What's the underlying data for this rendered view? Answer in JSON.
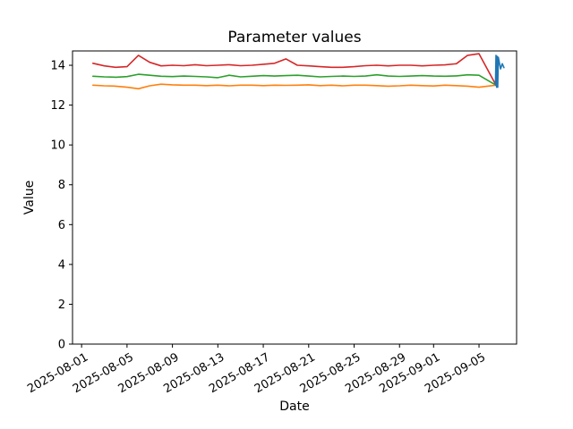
{
  "figure": {
    "background": "#ffffff",
    "plot_background": "#ffffff",
    "spine_color": "#000000"
  },
  "chart_data": {
    "type": "line",
    "title": "Parameter values",
    "xlabel": "Date",
    "ylabel": "Value",
    "grid": false,
    "legend": false,
    "xlim_days_since_2025-08-01": [
      -0.8,
      38.31
    ],
    "ylim": [
      0,
      14.72
    ],
    "x_axis": {
      "origin_date": "2025-08-01",
      "tick_positions": [
        0,
        4,
        8,
        12,
        16,
        20,
        24,
        28,
        31,
        35
      ],
      "tick_labels": [
        "2025-08-01",
        "2025-08-05",
        "2025-08-09",
        "2025-08-13",
        "2025-08-17",
        "2025-08-21",
        "2025-08-25",
        "2025-08-29",
        "2025-09-01",
        "2025-09-05"
      ],
      "label_rotation_deg": 30
    },
    "y_axis": {
      "tick_values": [
        0,
        2,
        4,
        6,
        8,
        10,
        12,
        14
      ]
    },
    "series": [
      {
        "name": "red-series",
        "color": "#d62728",
        "x_days": [
          1,
          2,
          3,
          4,
          5,
          6,
          7,
          8,
          9,
          10,
          11,
          12,
          13,
          14,
          15,
          16,
          17,
          18,
          19,
          20,
          21,
          22,
          23,
          24,
          25,
          26,
          27,
          28,
          29,
          30,
          31,
          32,
          33,
          34,
          35,
          36.5
        ],
        "values": [
          14.1,
          13.97,
          13.9,
          13.93,
          14.5,
          14.15,
          13.97,
          14.0,
          13.98,
          14.03,
          13.98,
          14.0,
          14.03,
          13.98,
          14.0,
          14.05,
          14.1,
          14.32,
          14.0,
          13.97,
          13.93,
          13.9,
          13.9,
          13.93,
          13.98,
          14.0,
          13.97,
          14.0,
          14.0,
          13.97,
          14.0,
          14.02,
          14.08,
          14.5,
          14.58,
          13.0
        ]
      },
      {
        "name": "green-series",
        "color": "#2ca02c",
        "x_days": [
          1,
          2,
          3,
          4,
          5,
          6,
          7,
          8,
          9,
          10,
          11,
          12,
          13,
          14,
          15,
          16,
          17,
          18,
          19,
          20,
          21,
          22,
          23,
          24,
          25,
          26,
          27,
          28,
          29,
          30,
          31,
          32,
          33,
          34,
          35,
          36.5
        ],
        "values": [
          13.45,
          13.42,
          13.4,
          13.43,
          13.55,
          13.5,
          13.45,
          13.43,
          13.46,
          13.44,
          13.42,
          13.38,
          13.5,
          13.42,
          13.45,
          13.48,
          13.46,
          13.48,
          13.5,
          13.46,
          13.42,
          13.44,
          13.46,
          13.44,
          13.46,
          13.52,
          13.46,
          13.44,
          13.46,
          13.48,
          13.46,
          13.45,
          13.47,
          13.52,
          13.5,
          13.0
        ]
      },
      {
        "name": "orange-series",
        "color": "#ff7f0e",
        "x_days": [
          1,
          2,
          3,
          4,
          5,
          6,
          7,
          8,
          9,
          10,
          11,
          12,
          13,
          14,
          15,
          16,
          17,
          18,
          19,
          20,
          21,
          22,
          23,
          24,
          25,
          26,
          27,
          28,
          29,
          30,
          31,
          32,
          33,
          34,
          35,
          36.5
        ],
        "values": [
          13.0,
          12.97,
          12.95,
          12.9,
          12.82,
          12.97,
          13.05,
          13.02,
          13.0,
          13.0,
          12.98,
          13.0,
          12.97,
          13.0,
          13.0,
          12.98,
          13.0,
          12.99,
          13.0,
          13.02,
          12.98,
          13.0,
          12.97,
          13.0,
          13.0,
          12.98,
          12.95,
          12.97,
          13.0,
          12.98,
          12.96,
          13.0,
          12.98,
          12.95,
          12.9,
          13.0
        ]
      },
      {
        "name": "blue-series",
        "color": "#1f77b4",
        "x_days": [
          36.45,
          36.5,
          36.55,
          36.6,
          36.65,
          36.7,
          36.9,
          37.05,
          37.2
        ],
        "values": [
          13.0,
          14.5,
          12.9,
          14.45,
          12.9,
          14.4,
          13.82,
          14.08,
          13.88
        ]
      }
    ]
  }
}
